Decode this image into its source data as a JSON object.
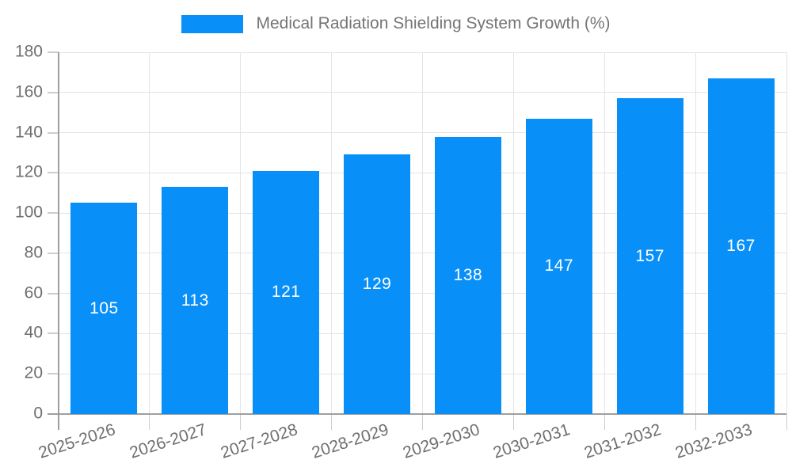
{
  "chart_data": {
    "type": "bar",
    "title": "Medical Radiation Shielding System Growth (%)",
    "categories": [
      "2025-2026",
      "2026-2027",
      "2027-2028",
      "2028-2029",
      "2029-2030",
      "2030-2031",
      "2031-2032",
      "2032-2033"
    ],
    "values": [
      105,
      113,
      121,
      129,
      138,
      147,
      157,
      167
    ],
    "xlabel": "",
    "ylabel": "",
    "ylim": [
      0,
      180
    ],
    "ytick_step": 20,
    "ytick_labels": [
      "0",
      "20",
      "40",
      "60",
      "80",
      "100",
      "120",
      "140",
      "160",
      "180"
    ],
    "grid": "both",
    "legend_position": "top-center",
    "value_label_position": "inside-center",
    "bar_color": "#0890F8",
    "value_label_color": "#FFFFFF",
    "axis_text_color": "#6F6F6F",
    "grid_color": "#E4E4E4",
    "axis_line_color": "#9E9E9E",
    "tick_color": "#CDCDCD",
    "background_color": "#FFFFFF"
  }
}
